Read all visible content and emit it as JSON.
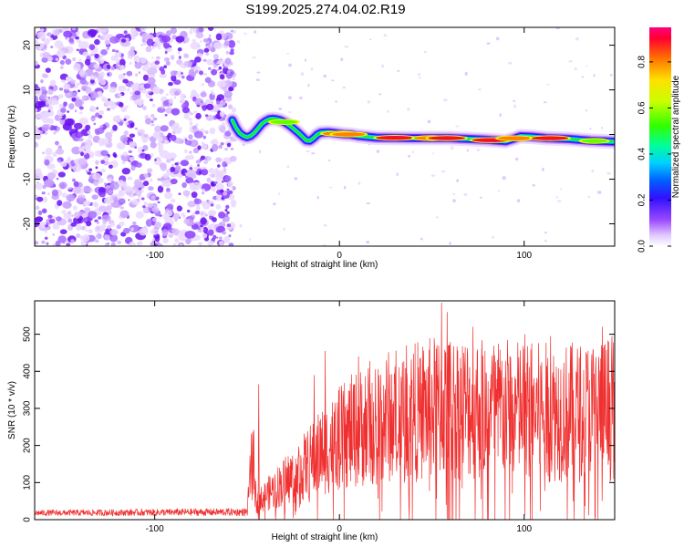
{
  "title": "S199.2025.274.04.02.R19",
  "chart_data": [
    {
      "type": "heatmap",
      "name": "spectrogram",
      "xlabel": "Height of straight line (km)",
      "ylabel": "Frequency (Hz)",
      "xlim": [
        -165,
        149
      ],
      "ylim": [
        -25,
        24
      ],
      "xticks": [
        -100,
        0,
        100
      ],
      "yticks": [
        -20,
        -10,
        0,
        10,
        20
      ],
      "noise_region_x": [
        -165,
        -57
      ],
      "ridge": [
        [
          -58,
          3.2
        ],
        [
          -56,
          1.5
        ],
        [
          -54,
          0.3
        ],
        [
          -52,
          -0.3
        ],
        [
          -50,
          -0.6
        ],
        [
          -48,
          -0.3
        ],
        [
          -46,
          0.4
        ],
        [
          -44,
          1.4
        ],
        [
          -42,
          2.4
        ],
        [
          -40,
          3.0
        ],
        [
          -38,
          3.4
        ],
        [
          -36,
          3.5
        ],
        [
          -34,
          3.4
        ],
        [
          -32,
          3.2
        ],
        [
          -30,
          2.8
        ],
        [
          -28,
          2.3
        ],
        [
          -26,
          1.7
        ],
        [
          -24,
          1.0
        ],
        [
          -22,
          0.3
        ],
        [
          -20,
          -0.5
        ],
        [
          -18,
          -1.3
        ],
        [
          -16,
          -1.4
        ],
        [
          -14,
          -0.8
        ],
        [
          -12,
          0.0
        ],
        [
          -10,
          0.4
        ],
        [
          -6,
          0.5
        ],
        [
          -2,
          0.3
        ],
        [
          2,
          0.1
        ],
        [
          6,
          0.0
        ],
        [
          10,
          -0.3
        ],
        [
          20,
          -0.7
        ],
        [
          40,
          -0.8
        ],
        [
          60,
          -0.8
        ],
        [
          80,
          -1.2
        ],
        [
          90,
          -1.5
        ],
        [
          94,
          -1.0
        ],
        [
          98,
          -0.4
        ],
        [
          104,
          -0.5
        ],
        [
          112,
          -0.8
        ],
        [
          124,
          -1.0
        ],
        [
          136,
          -1.4
        ],
        [
          148,
          -1.6
        ]
      ],
      "peaks": [
        {
          "x": 30,
          "amplitude": 0.93
        },
        {
          "x": 50,
          "amplitude": 0.85
        },
        {
          "x": 58,
          "amplitude": 0.9
        },
        {
          "x": 82,
          "amplitude": 0.92
        },
        {
          "x": 95,
          "amplitude": 0.8
        },
        {
          "x": 114,
          "amplitude": 0.88
        },
        {
          "x": 138,
          "amplitude": 0.5
        },
        {
          "x": 0,
          "amplitude": 0.78
        },
        {
          "x": 5,
          "amplitude": 0.75
        },
        {
          "x": -30,
          "amplitude": 0.55
        }
      ]
    },
    {
      "type": "colorbar",
      "name": "amplitude-colorbar",
      "label": "Normalized spectral amplitude",
      "range": [
        0,
        0.95
      ],
      "ticks": [
        "0.0",
        "0.2",
        "0.4",
        "0.6",
        "0.8"
      ],
      "tick_values": [
        0.0,
        0.2,
        0.4,
        0.6,
        0.8
      ]
    },
    {
      "type": "line",
      "name": "snr",
      "xlabel": "Height of straight line (km)",
      "ylabel": "SNR (10 * v/v)",
      "xlim": [
        -165,
        149
      ],
      "ylim": [
        0,
        590
      ],
      "xticks": [
        -100,
        0,
        100
      ],
      "yticks": [
        0,
        100,
        200,
        300,
        400,
        500
      ],
      "color": "#f03030",
      "envelope": [
        [
          -165,
          20
        ],
        [
          -120,
          22
        ],
        [
          -80,
          24
        ],
        [
          -50,
          25
        ],
        [
          -47,
          260
        ],
        [
          -45,
          60
        ],
        [
          -40,
          90
        ],
        [
          -30,
          140
        ],
        [
          -20,
          190
        ],
        [
          -10,
          250
        ],
        [
          0,
          300
        ],
        [
          10,
          340
        ],
        [
          20,
          370
        ],
        [
          30,
          390
        ],
        [
          40,
          400
        ],
        [
          55,
          420
        ],
        [
          70,
          420
        ],
        [
          90,
          410
        ],
        [
          110,
          400
        ],
        [
          130,
          400
        ],
        [
          149,
          420
        ]
      ],
      "spikes": [
        {
          "x": -44,
          "y": 365
        },
        {
          "x": -8,
          "y": 455
        },
        {
          "x": -14,
          "y": 390
        },
        {
          "x": 10,
          "y": 440
        },
        {
          "x": 36,
          "y": 470
        },
        {
          "x": 55,
          "y": 585
        },
        {
          "x": 58,
          "y": 560
        },
        {
          "x": 72,
          "y": 520
        },
        {
          "x": 100,
          "y": 500
        },
        {
          "x": 114,
          "y": 495
        },
        {
          "x": 142,
          "y": 520
        }
      ]
    }
  ],
  "colors": {
    "axis": "#000000",
    "line": "#f03030",
    "noise": "#7a2aff"
  }
}
